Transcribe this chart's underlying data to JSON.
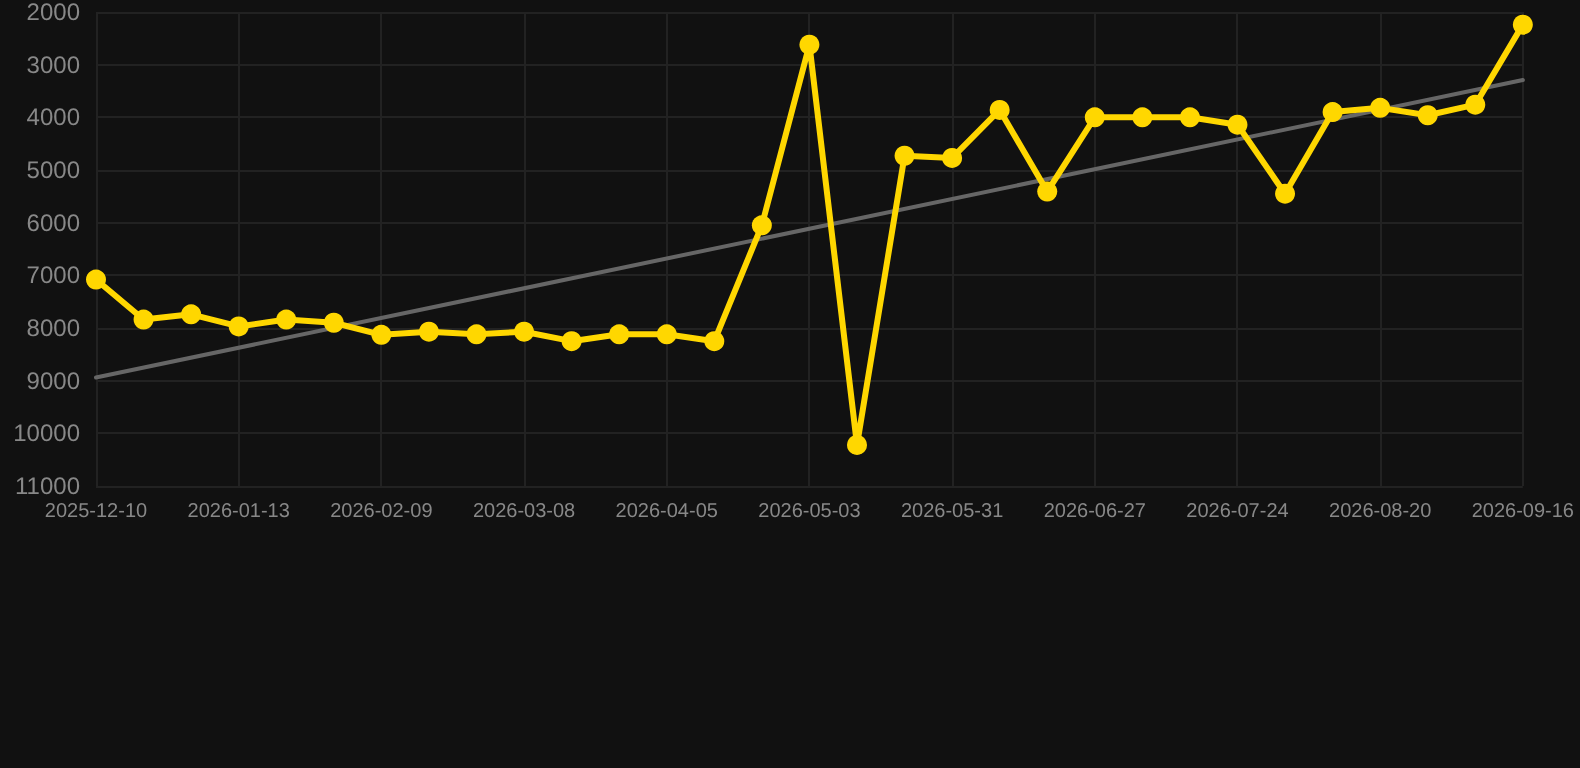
{
  "chart_data": {
    "type": "line",
    "categories": [
      "2025-12-10",
      null,
      null,
      "2026-01-13",
      null,
      null,
      "2026-02-09",
      null,
      null,
      "2026-03-08",
      null,
      null,
      "2026-04-05",
      null,
      null,
      "2026-05-03",
      null,
      null,
      "2026-05-31",
      null,
      null,
      "2026-06-27",
      null,
      null,
      "2026-07-24",
      null,
      null,
      "2026-08-20",
      null,
      null,
      "2026-09-16"
    ],
    "series": [
      {
        "color": "#ffd700",
        "marker": "circle",
        "values": [
          7080,
          7840,
          7740,
          7970,
          7840,
          7900,
          8130,
          8070,
          8120,
          8070,
          8250,
          8120,
          8120,
          8250,
          6050,
          2620,
          10220,
          4730,
          4770,
          3860,
          5410,
          4000,
          4000,
          4000,
          4140,
          5450,
          3900,
          3820,
          3960,
          3760,
          2240
        ]
      },
      {
        "color": "#666666",
        "marker": "none",
        "values": [
          8940,
          null,
          null,
          null,
          null,
          null,
          null,
          null,
          null,
          null,
          null,
          null,
          null,
          null,
          null,
          null,
          null,
          null,
          null,
          null,
          null,
          null,
          null,
          null,
          null,
          null,
          null,
          null,
          null,
          null,
          3290
        ]
      }
    ],
    "ylim": [
      11000,
      2000
    ],
    "yticks": [
      2000,
      3000,
      4000,
      5000,
      6000,
      7000,
      8000,
      9000,
      10000,
      11000
    ],
    "grid": true
  }
}
